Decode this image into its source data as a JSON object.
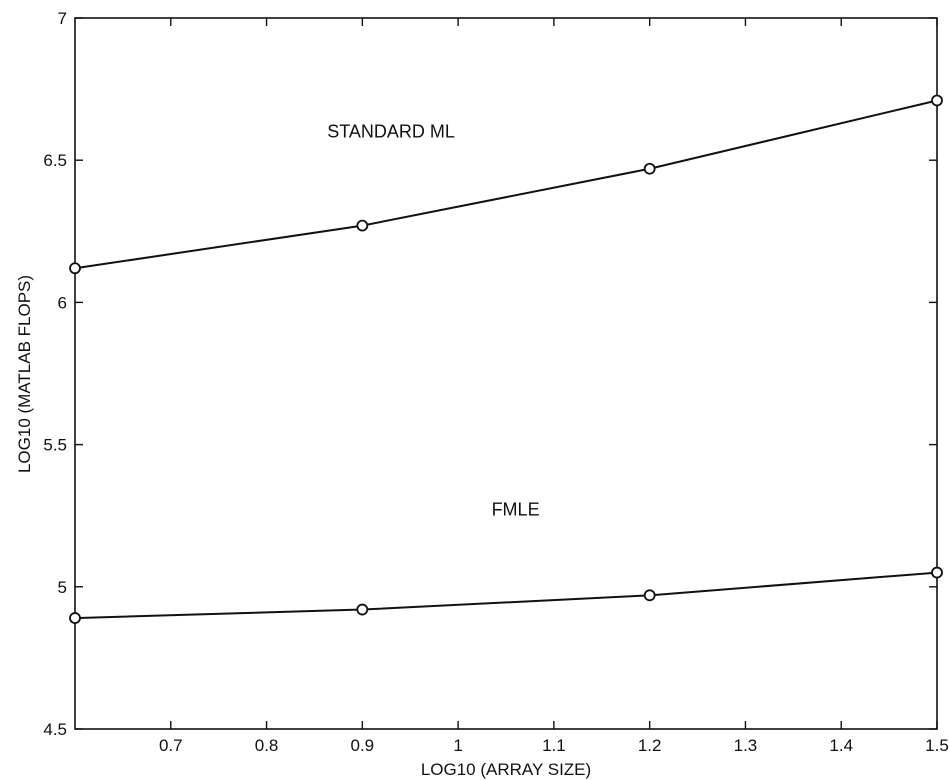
{
  "chart_data": {
    "type": "line",
    "xlabel": "LOG10 (ARRAY SIZE)",
    "ylabel": "LOG10 (MATLAB FLOPS)",
    "xlim": [
      0.6,
      1.5
    ],
    "ylim": [
      4.5,
      7
    ],
    "x_ticks": [
      0.7,
      0.8,
      0.9,
      1,
      1.1,
      1.2,
      1.3,
      1.4,
      1.5
    ],
    "x_tick_labels": [
      "0.7",
      "0.8",
      "0.9",
      "1",
      "1.1",
      "1.2",
      "1.3",
      "1.4",
      "1.5"
    ],
    "y_ticks": [
      4.5,
      5,
      5.5,
      6,
      6.5,
      7
    ],
    "y_tick_labels": [
      "4.5",
      "5",
      "5.5",
      "6",
      "6.5",
      "7"
    ],
    "grid": false,
    "marker": "circle",
    "series": [
      {
        "x": [
          0.6,
          0.9,
          1.2,
          1.5
        ],
        "values": [
          6.12,
          6.27,
          6.47,
          6.71
        ]
      },
      {
        "x": [
          0.6,
          0.9,
          1.2,
          1.5
        ],
        "values": [
          4.89,
          4.92,
          4.97,
          5.05
        ]
      }
    ],
    "annotations": [
      {
        "text": "STANDARD ML",
        "x": 0.93,
        "y": 6.58
      },
      {
        "text": "FMLE",
        "x": 1.06,
        "y": 5.25
      }
    ]
  }
}
